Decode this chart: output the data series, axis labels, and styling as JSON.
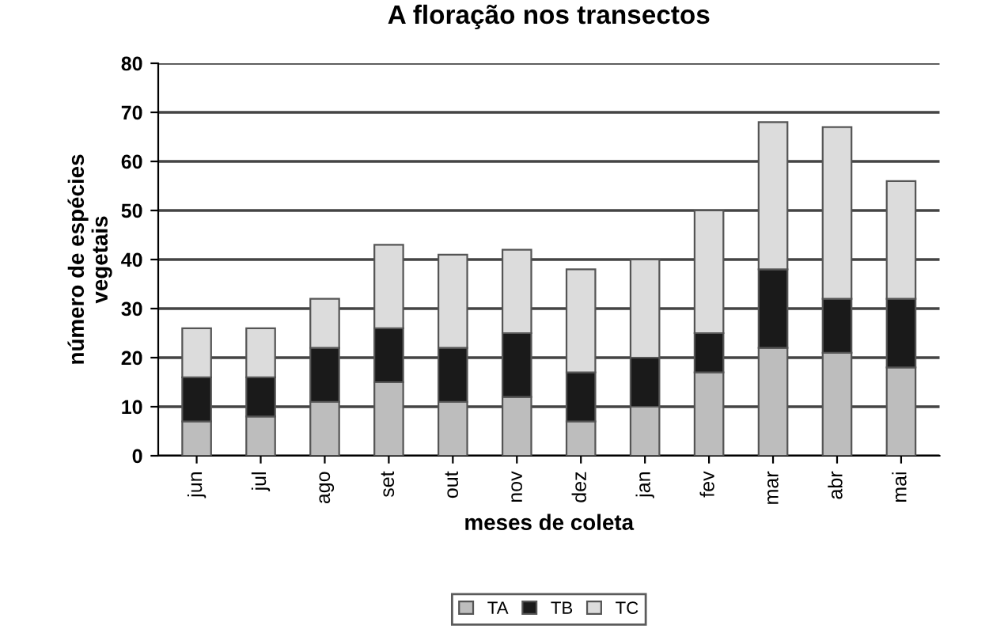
{
  "chart_data": {
    "type": "bar",
    "stacked": true,
    "title": "A floração nos transectos",
    "xlabel": "meses de coleta",
    "ylabel": "número de espécies\nvegetais",
    "categories": [
      "jun",
      "jul",
      "ago",
      "set",
      "out",
      "nov",
      "dez",
      "jan",
      "fev",
      "mar",
      "abr",
      "mai"
    ],
    "series": [
      {
        "name": "TA",
        "color": "#bdbdbd",
        "values": [
          7,
          8,
          11,
          15,
          11,
          12,
          7,
          10,
          17,
          22,
          21,
          18
        ]
      },
      {
        "name": "TB",
        "color": "#1a1a1a",
        "values": [
          9,
          8,
          11,
          11,
          11,
          13,
          10,
          10,
          8,
          16,
          11,
          14
        ]
      },
      {
        "name": "TC",
        "color": "#dcdcdc",
        "values": [
          10,
          10,
          10,
          17,
          19,
          17,
          21,
          20,
          25,
          30,
          35,
          24
        ]
      }
    ],
    "ylim": [
      0,
      80
    ],
    "yticks": [
      0,
      10,
      20,
      30,
      40,
      50,
      60,
      70,
      80
    ],
    "grid": "y",
    "legend": "bottom"
  }
}
